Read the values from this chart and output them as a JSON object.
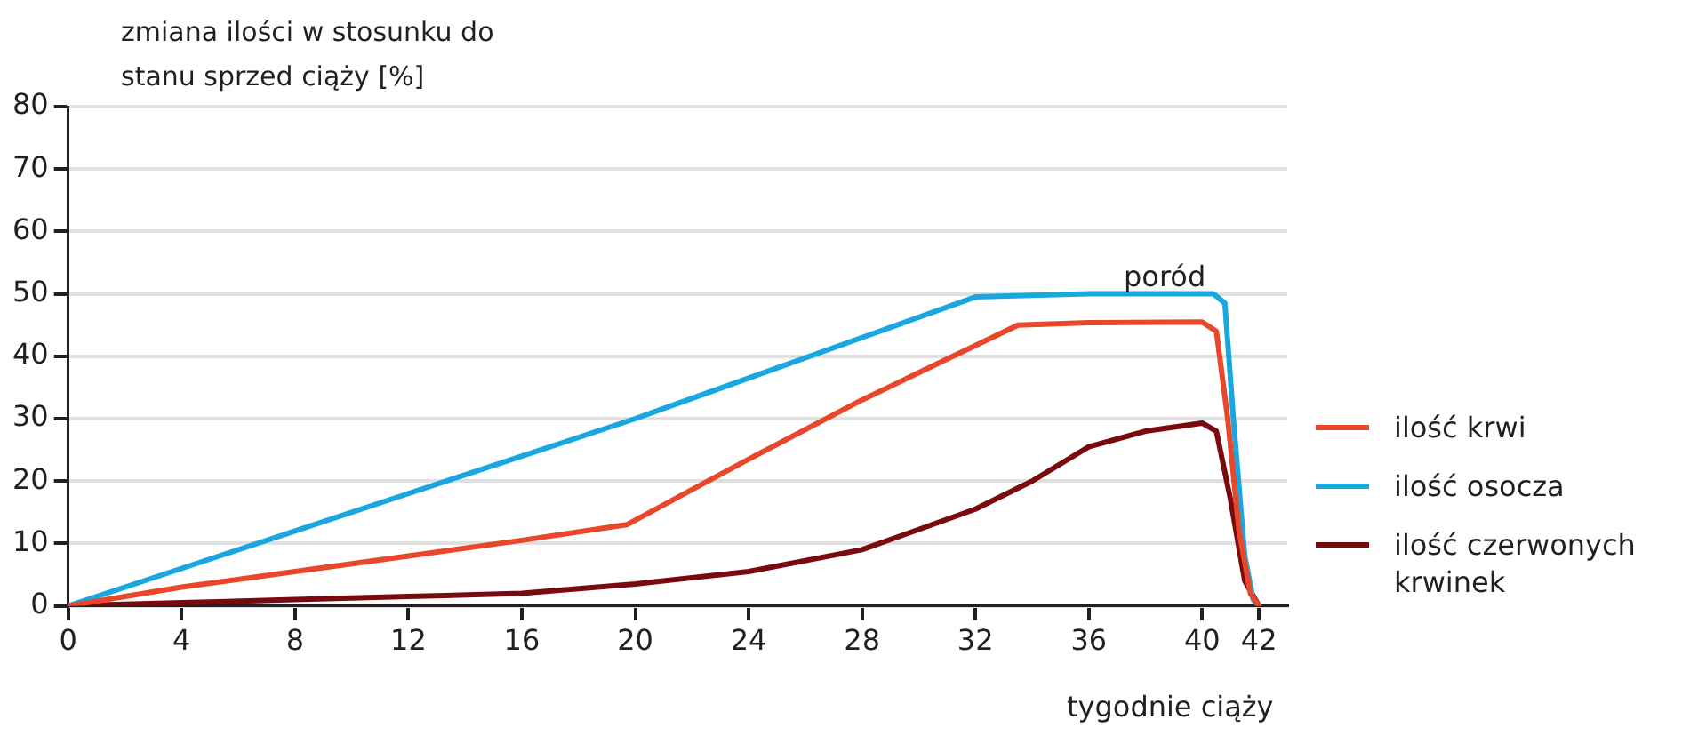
{
  "chart_data": {
    "type": "line",
    "ylabel": "zmiana ilości w stosunku do stanu sprzed ciąży [%]",
    "xlabel": "tygodnie ciąży",
    "xlim": [
      0,
      43
    ],
    "xticks": [
      0,
      4,
      8,
      12,
      16,
      20,
      24,
      28,
      32,
      36,
      40,
      42
    ],
    "ylim": [
      0,
      80
    ],
    "yticks": [
      0,
      10,
      20,
      30,
      40,
      50,
      60,
      70,
      80
    ],
    "grid": "y",
    "legend": "right",
    "marker": "none",
    "line_style": "solid",
    "annotations": [
      "poród"
    ],
    "series": [
      {
        "name": "ilość krwi",
        "color": "#e8472b",
        "x": [
          0,
          4,
          8,
          12,
          16,
          19.7,
          24,
          28,
          33.5,
          36,
          40,
          40.5,
          40.9,
          41.3,
          41.7,
          42
        ],
        "values": [
          0,
          3,
          5.5,
          8,
          10.5,
          13,
          23.5,
          33,
          45,
          45.4,
          45.5,
          44,
          30,
          12,
          2,
          0
        ]
      },
      {
        "name": "ilość osocza",
        "color": "#1aa7e0",
        "x": [
          0,
          4,
          8,
          12,
          16,
          20,
          24,
          28,
          32,
          36,
          40.4,
          40.8,
          41.1,
          41.5,
          41.8,
          42
        ],
        "values": [
          0,
          6,
          12,
          18,
          24,
          30,
          36.5,
          43,
          49.5,
          50,
          50,
          48.5,
          30,
          8,
          1,
          0
        ]
      },
      {
        "name": "ilość czerwonych krwinek",
        "color": "#7a0a0e",
        "x": [
          0,
          4,
          8,
          12,
          16,
          20,
          24,
          28,
          32,
          34,
          36,
          38,
          40,
          40.5,
          41,
          41.5,
          42
        ],
        "values": [
          0,
          0.5,
          1,
          1.5,
          2,
          3.5,
          5.5,
          9,
          15.5,
          20,
          25.5,
          28,
          29.3,
          28,
          17,
          4,
          0
        ]
      }
    ]
  }
}
